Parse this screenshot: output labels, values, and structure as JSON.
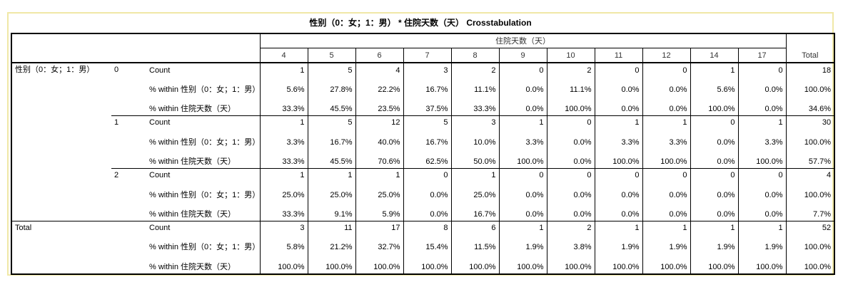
{
  "title": "性别（0：女；1：男） * 住院天数（天） Crosstabulation",
  "col_var": "住院天数（天）",
  "row_var": "性别（0：女；1：男）",
  "columns": [
    "4",
    "5",
    "6",
    "7",
    "8",
    "9",
    "10",
    "11",
    "12",
    "14",
    "17"
  ],
  "total_label": "Total",
  "stat_labels": {
    "count": "Count",
    "within_row": "% within 性别（0：女；1：男）",
    "within_col": "% within 住院天数（天）"
  },
  "groups": [
    {
      "level": "0",
      "count": [
        "1",
        "5",
        "4",
        "3",
        "2",
        "0",
        "2",
        "0",
        "0",
        "1",
        "0",
        "18"
      ],
      "within_row": [
        "5.6%",
        "27.8%",
        "22.2%",
        "16.7%",
        "11.1%",
        "0.0%",
        "11.1%",
        "0.0%",
        "0.0%",
        "5.6%",
        "0.0%",
        "100.0%"
      ],
      "within_col": [
        "33.3%",
        "45.5%",
        "23.5%",
        "37.5%",
        "33.3%",
        "0.0%",
        "100.0%",
        "0.0%",
        "0.0%",
        "100.0%",
        "0.0%",
        "34.6%"
      ]
    },
    {
      "level": "1",
      "count": [
        "1",
        "5",
        "12",
        "5",
        "3",
        "1",
        "0",
        "1",
        "1",
        "0",
        "1",
        "30"
      ],
      "within_row": [
        "3.3%",
        "16.7%",
        "40.0%",
        "16.7%",
        "10.0%",
        "3.3%",
        "0.0%",
        "3.3%",
        "3.3%",
        "0.0%",
        "3.3%",
        "100.0%"
      ],
      "within_col": [
        "33.3%",
        "45.5%",
        "70.6%",
        "62.5%",
        "50.0%",
        "100.0%",
        "0.0%",
        "100.0%",
        "100.0%",
        "0.0%",
        "100.0%",
        "57.7%"
      ]
    },
    {
      "level": "2",
      "count": [
        "1",
        "1",
        "1",
        "0",
        "1",
        "0",
        "0",
        "0",
        "0",
        "0",
        "0",
        "4"
      ],
      "within_row": [
        "25.0%",
        "25.0%",
        "25.0%",
        "0.0%",
        "25.0%",
        "0.0%",
        "0.0%",
        "0.0%",
        "0.0%",
        "0.0%",
        "0.0%",
        "100.0%"
      ],
      "within_col": [
        "33.3%",
        "9.1%",
        "5.9%",
        "0.0%",
        "16.7%",
        "0.0%",
        "0.0%",
        "0.0%",
        "0.0%",
        "0.0%",
        "0.0%",
        "7.7%"
      ]
    }
  ],
  "total": {
    "label": "Total",
    "count": [
      "3",
      "11",
      "17",
      "8",
      "6",
      "1",
      "2",
      "1",
      "1",
      "1",
      "1",
      "52"
    ],
    "within_row": [
      "5.8%",
      "21.2%",
      "32.7%",
      "15.4%",
      "11.5%",
      "1.9%",
      "3.8%",
      "1.9%",
      "1.9%",
      "1.9%",
      "1.9%",
      "100.0%"
    ],
    "within_col": [
      "100.0%",
      "100.0%",
      "100.0%",
      "100.0%",
      "100.0%",
      "100.0%",
      "100.0%",
      "100.0%",
      "100.0%",
      "100.0%",
      "100.0%",
      "100.0%"
    ]
  }
}
